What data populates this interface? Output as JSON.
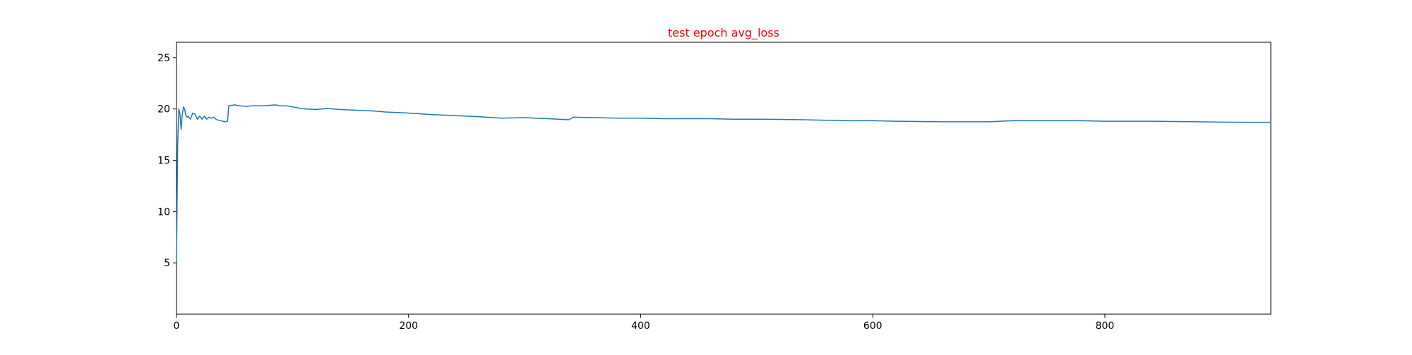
{
  "chart_data": {
    "type": "line",
    "title": "test epoch avg_loss",
    "title_color": "#ff0000",
    "xlabel": "",
    "ylabel": "",
    "xlim": [
      0,
      943
    ],
    "ylim": [
      0,
      26.5
    ],
    "xticks": [
      0,
      200,
      400,
      600,
      800
    ],
    "yticks": [
      5,
      10,
      15,
      20,
      25
    ],
    "grid": false,
    "series": [
      {
        "color": "#1f77b4",
        "x": [
          0,
          1,
          2,
          3,
          4,
          5,
          6,
          7,
          8,
          9,
          10,
          12,
          14,
          16,
          18,
          20,
          22,
          24,
          26,
          28,
          30,
          32,
          34,
          36,
          38,
          40,
          42,
          44,
          45,
          46,
          48,
          50,
          55,
          60,
          65,
          70,
          75,
          80,
          85,
          90,
          95,
          100,
          110,
          120,
          130,
          140,
          150,
          160,
          170,
          180,
          190,
          200,
          220,
          240,
          260,
          280,
          300,
          320,
          338,
          342,
          360,
          380,
          400,
          420,
          440,
          460,
          480,
          500,
          520,
          540,
          560,
          580,
          600,
          620,
          640,
          660,
          680,
          700,
          710,
          720,
          740,
          760,
          780,
          800,
          820,
          840,
          860,
          880,
          900,
          920,
          943
        ],
        "y": [
          5.0,
          16.5,
          20.0,
          19.5,
          18.0,
          19.5,
          20.2,
          20.0,
          19.4,
          19.2,
          19.3,
          19.0,
          19.6,
          19.5,
          19.0,
          19.3,
          19.0,
          19.3,
          19.0,
          19.2,
          19.1,
          19.2,
          19.0,
          18.9,
          18.85,
          18.8,
          18.75,
          18.8,
          20.3,
          20.35,
          20.35,
          20.4,
          20.3,
          20.25,
          20.3,
          20.3,
          20.3,
          20.35,
          20.4,
          20.3,
          20.3,
          20.2,
          20.0,
          19.95,
          20.05,
          19.95,
          19.9,
          19.85,
          19.8,
          19.7,
          19.65,
          19.6,
          19.45,
          19.35,
          19.25,
          19.1,
          19.15,
          19.05,
          18.95,
          19.2,
          19.15,
          19.1,
          19.1,
          19.05,
          19.05,
          19.05,
          19.0,
          19.0,
          18.98,
          18.95,
          18.9,
          18.85,
          18.85,
          18.8,
          18.78,
          18.75,
          18.75,
          18.75,
          18.8,
          18.85,
          18.85,
          18.85,
          18.85,
          18.8,
          18.8,
          18.8,
          18.78,
          18.75,
          18.72,
          18.7,
          18.7
        ]
      }
    ]
  }
}
